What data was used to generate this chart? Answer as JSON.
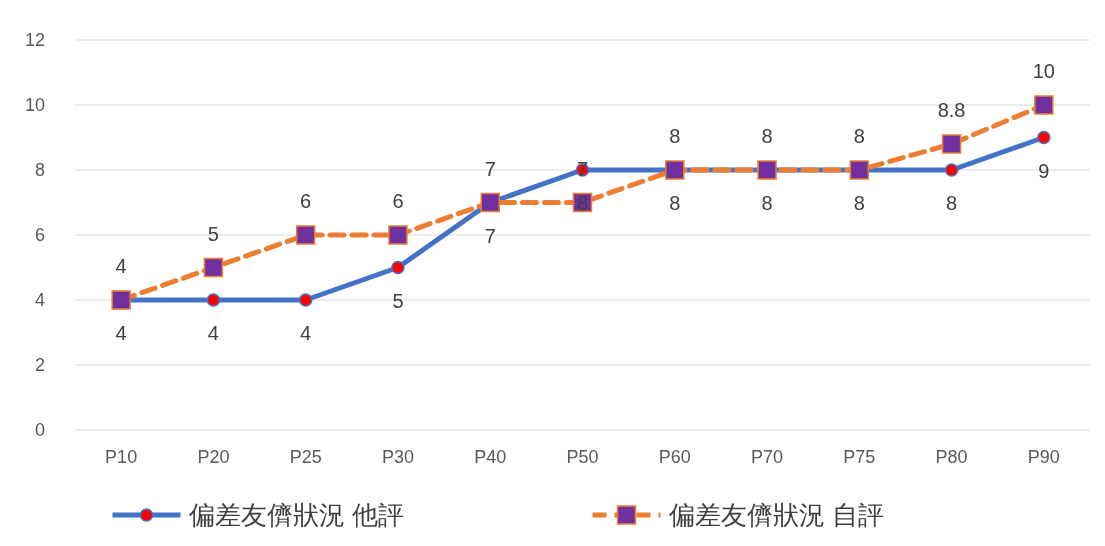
{
  "chart_data": {
    "type": "line",
    "categories": [
      "P10",
      "P20",
      "P25",
      "P30",
      "P40",
      "P50",
      "P60",
      "P70",
      "P75",
      "P80",
      "P90"
    ],
    "series": [
      {
        "name": "偏差友儕狀況 他評",
        "color": "#4472c4",
        "values": [
          4,
          4,
          4,
          5,
          7,
          8,
          8,
          8,
          8,
          8,
          9
        ],
        "marker": "circle",
        "line_style": "solid"
      },
      {
        "name": "偏差友儕狀況 自評",
        "color": "#ed7d31",
        "values": [
          4,
          5,
          6,
          6,
          7,
          7,
          8,
          8,
          8,
          8.8,
          10
        ],
        "marker": "square",
        "line_style": "dashed"
      }
    ],
    "ylim": [
      0,
      12
    ],
    "yticks": [
      0,
      2,
      4,
      6,
      8,
      10,
      12
    ],
    "grid": "y",
    "legend": "bottom",
    "data_labels": true
  }
}
